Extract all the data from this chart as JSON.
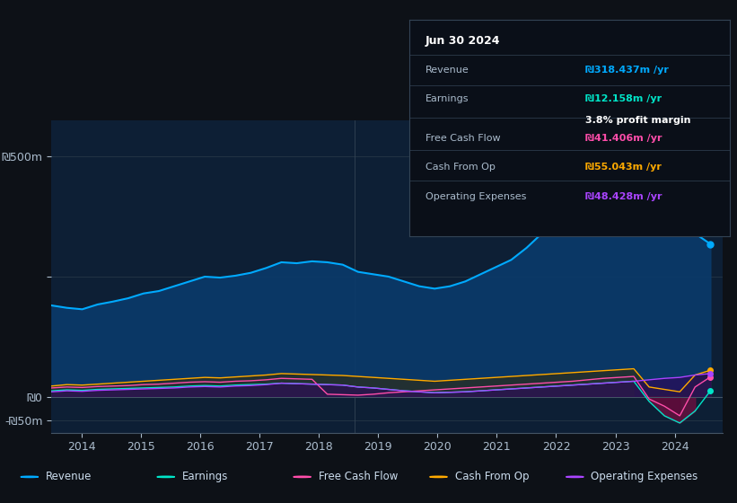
{
  "bg_color": "#0d1117",
  "plot_bg_color": "#0d1f35",
  "revenue_color": "#00aaff",
  "earnings_color": "#00e5c8",
  "free_cash_flow_color": "#ff4daa",
  "cash_from_op_color": "#ffaa00",
  "operating_expenses_color": "#aa44ff",
  "revenue_fill_color": "#0a3a6b",
  "earnings_fill_color": "#1a5545",
  "tooltip": {
    "date": "Jun 30 2024",
    "revenue_label": "Revenue",
    "revenue_value": "₪318.437m /yr",
    "earnings_label": "Earnings",
    "earnings_value": "₪12.158m /yr",
    "profit_margin": "3.8% profit margin",
    "fcf_label": "Free Cash Flow",
    "fcf_value": "₪41.406m /yr",
    "cfo_label": "Cash From Op",
    "cfo_value": "₪55.043m /yr",
    "opex_label": "Operating Expenses",
    "opex_value": "₪48.428m /yr"
  },
  "revenue": [
    190,
    185,
    182,
    192,
    198,
    205,
    215,
    220,
    230,
    240,
    250,
    248,
    252,
    258,
    268,
    280,
    278,
    282,
    280,
    275,
    260,
    255,
    250,
    240,
    230,
    225,
    230,
    240,
    255,
    270,
    285,
    310,
    340,
    370,
    410,
    450,
    490,
    520,
    550,
    490,
    430,
    380,
    340,
    318
  ],
  "earnings": [
    12,
    14,
    13,
    15,
    16,
    17,
    18,
    19,
    20,
    22,
    23,
    22,
    24,
    25,
    26,
    28,
    27,
    26,
    25,
    24,
    20,
    18,
    15,
    12,
    10,
    8,
    9,
    10,
    12,
    14,
    16,
    18,
    20,
    22,
    24,
    26,
    28,
    30,
    32,
    -10,
    -40,
    -55,
    -30,
    12
  ],
  "free_cash_flow": [
    18,
    20,
    19,
    21,
    22,
    23,
    25,
    26,
    28,
    30,
    31,
    30,
    32,
    33,
    35,
    38,
    37,
    36,
    5,
    4,
    3,
    5,
    8,
    10,
    12,
    14,
    16,
    18,
    20,
    22,
    24,
    26,
    28,
    30,
    32,
    35,
    38,
    40,
    42,
    -5,
    -20,
    -40,
    20,
    41
  ],
  "cash_from_op": [
    22,
    25,
    24,
    26,
    28,
    30,
    32,
    34,
    36,
    38,
    40,
    39,
    41,
    43,
    45,
    48,
    47,
    46,
    45,
    44,
    42,
    40,
    38,
    36,
    34,
    32,
    34,
    36,
    38,
    40,
    42,
    44,
    46,
    48,
    50,
    52,
    54,
    56,
    58,
    20,
    15,
    10,
    45,
    55
  ],
  "operating_expenses": [
    10,
    12,
    11,
    13,
    14,
    15,
    16,
    17,
    18,
    20,
    21,
    20,
    22,
    23,
    25,
    28,
    27,
    26,
    25,
    24,
    20,
    18,
    15,
    12,
    10,
    8,
    9,
    10,
    12,
    14,
    16,
    18,
    20,
    22,
    24,
    26,
    28,
    30,
    32,
    35,
    38,
    40,
    45,
    48
  ]
}
